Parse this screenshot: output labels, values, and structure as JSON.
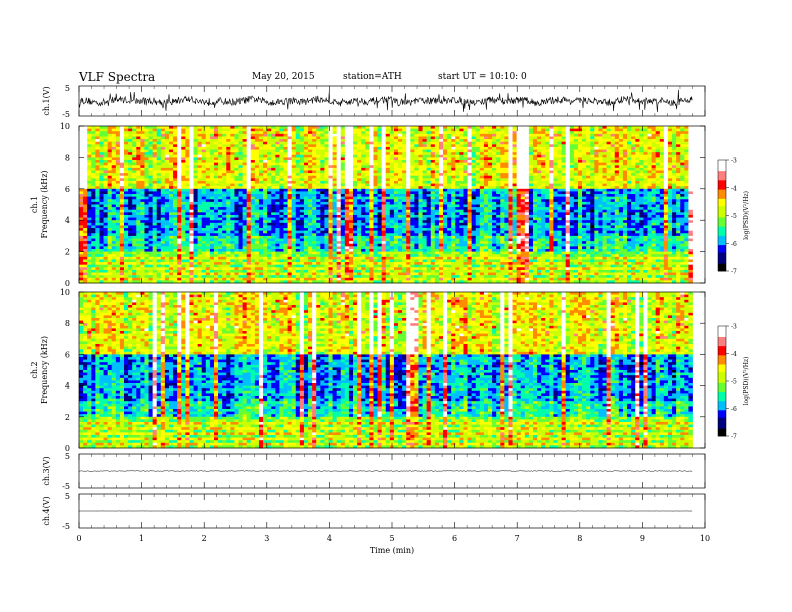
{
  "header": {
    "title": "VLF  Spectra",
    "date": "May 20, 2015",
    "station": "station=ATH",
    "start": "start  UT  =   10:10: 0"
  },
  "chart_data": [
    {
      "type": "line",
      "panel": "ch1-waveform",
      "ylabel": "ch.1(V)",
      "ylim": [
        -5,
        5
      ],
      "yticks": [
        "5",
        "-5"
      ],
      "xlim": [
        0,
        10
      ],
      "series": [
        {
          "x_range": [
            0,
            9.8
          ],
          "baseline": 0,
          "noise_amplitude": 1.2,
          "spike_amplitude": 3.5
        }
      ],
      "color": "#000000"
    },
    {
      "type": "heatmap",
      "panel": "ch1-spectrogram",
      "ylabel": "ch.1\nFrequency  (kHz)",
      "ylim": [
        0,
        10
      ],
      "yticks": [
        "0",
        "2",
        "4",
        "6",
        "8",
        "10"
      ],
      "xlim": [
        0,
        10
      ],
      "data_x_range": [
        0,
        9.8
      ],
      "colorbar": {
        "label": "log(PSD)(V²/Hz)",
        "range": [
          -7,
          -3
        ],
        "ticks": [
          "-3",
          "-4",
          "-5",
          "-6",
          "-7"
        ]
      },
      "colormap": [
        "#000000",
        "#00007f",
        "#0000ff",
        "#00bfff",
        "#00ffaa",
        "#66ff33",
        "#ccff00",
        "#ffff00",
        "#ff8c00",
        "#ff0000",
        "#ff7f7f",
        "#ffffff"
      ]
    },
    {
      "type": "heatmap",
      "panel": "ch2-spectrogram",
      "ylabel": "ch.2\nFrequency  (kHz)",
      "ylim": [
        0,
        10
      ],
      "yticks": [
        "0",
        "2",
        "4",
        "6",
        "8",
        "10"
      ],
      "xlim": [
        0,
        10
      ],
      "data_x_range": [
        0,
        9.8
      ],
      "colorbar": {
        "label": "log(PSD)(V²/Hz)",
        "range": [
          -7,
          -3
        ],
        "ticks": [
          "-3",
          "-4",
          "-5",
          "-6",
          "-7"
        ]
      }
    },
    {
      "type": "line",
      "panel": "ch3-waveform",
      "ylabel": "ch.3(V)",
      "ylim": [
        -5,
        5
      ],
      "yticks": [
        "5",
        "-5"
      ],
      "series": [
        {
          "x_range": [
            0,
            9.8
          ],
          "baseline": 0,
          "noise_amplitude": 0.1
        }
      ]
    },
    {
      "type": "line",
      "panel": "ch4-waveform",
      "ylabel": "ch.4(V)",
      "ylim": [
        -5,
        5
      ],
      "yticks": [
        "5",
        "-5"
      ],
      "series": [
        {
          "x_range": [
            0,
            9.8
          ],
          "baseline": 0,
          "noise_amplitude": 0.02
        }
      ],
      "xlabel": "Time  (min)",
      "xticks": [
        "0",
        "1",
        "2",
        "3",
        "4",
        "5",
        "6",
        "7",
        "8",
        "9",
        "10"
      ]
    }
  ]
}
